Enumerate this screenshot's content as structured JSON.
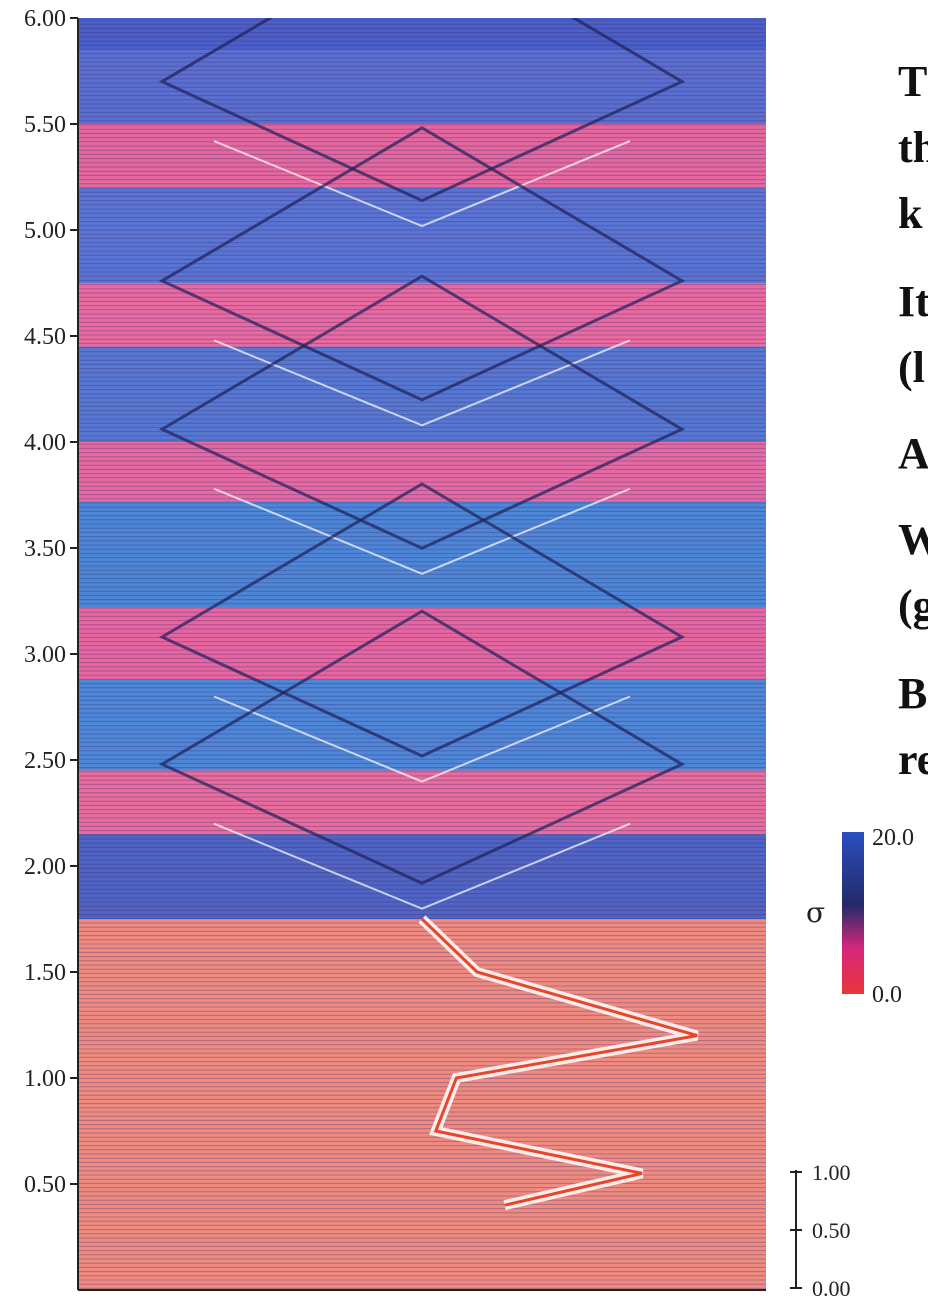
{
  "chart_data": {
    "type": "area",
    "title": "",
    "xlabel": "",
    "ylabel": "",
    "ylim": [
      0,
      6.0
    ],
    "y_ticks": [
      "6.00",
      "5.50",
      "5.00",
      "4.50",
      "4.00",
      "3.50",
      "3.00",
      "2.50",
      "2.00",
      "1.50",
      "1.00",
      "0.50"
    ],
    "grid": false,
    "notes": "Stacked waterfall of traces; diamond-shaped crossing pattern between 2.0 and 6.0",
    "colorbar": {
      "label": "σ",
      "max_label": "20.0",
      "min_label": "0.0",
      "colors": [
        "#2a4fc0",
        "#232a6a",
        "#d6287a",
        "#e8353a"
      ]
    },
    "amplitude_scale": {
      "ticks": [
        "1.00",
        "0.50",
        "0.00"
      ]
    },
    "crossing_centers": [
      {
        "y": 5.62,
        "x": 0.5
      },
      {
        "y": 4.68,
        "x": 0.5
      },
      {
        "y": 3.98,
        "x": 0.5
      },
      {
        "y": 3.0,
        "x": 0.5
      },
      {
        "y": 2.4,
        "x": 0.5
      }
    ],
    "peak_path": [
      {
        "y": 1.75,
        "x": 0.5
      },
      {
        "y": 1.5,
        "x": 0.58
      },
      {
        "y": 1.2,
        "x": 0.9
      },
      {
        "y": 1.0,
        "x": 0.55
      },
      {
        "y": 0.75,
        "x": 0.52
      },
      {
        "y": 0.55,
        "x": 0.82
      },
      {
        "y": 0.4,
        "x": 0.62
      }
    ]
  },
  "side_text": [
    "T",
    "th",
    "k",
    "It",
    "(l",
    "A",
    "W",
    "(g",
    "B",
    "re"
  ]
}
